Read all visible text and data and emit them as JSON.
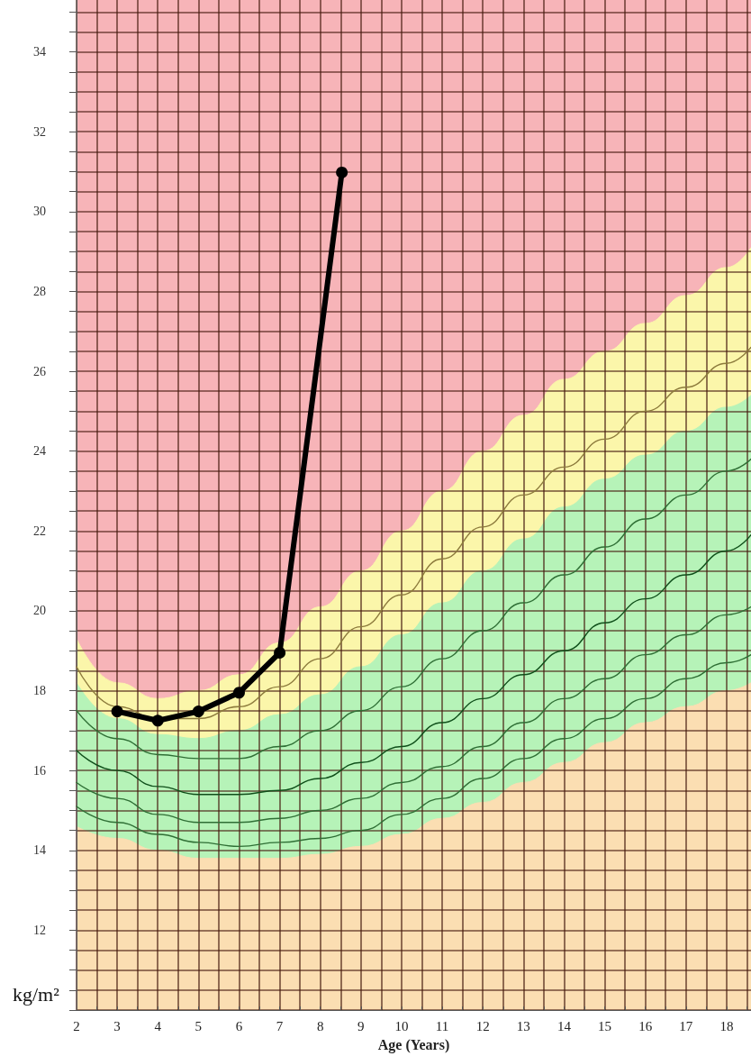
{
  "chart_data": {
    "type": "line",
    "xlabel": "Age (Years)",
    "ylabel": "kg/m²",
    "x": [
      2,
      3,
      4,
      5,
      6,
      7,
      8,
      9,
      10,
      11,
      12,
      13,
      14,
      15,
      16,
      17,
      18,
      18.6
    ],
    "xlim": [
      2,
      18.6
    ],
    "ylim": [
      10,
      35.3
    ],
    "xticks": [
      2,
      {
        "value": 2.5,
        "label": null
      },
      3,
      {
        "value": 3.5,
        "label": null
      },
      4,
      {
        "value": 4.5,
        "label": null
      },
      5,
      {
        "value": 5.5,
        "label": null
      },
      6,
      {
        "value": 6.5,
        "label": null
      },
      7,
      {
        "value": 7.5,
        "label": null
      },
      8,
      {
        "value": 8.5,
        "label": null
      },
      9,
      {
        "value": 9.5,
        "label": null
      },
      10,
      {
        "value": 10.5,
        "label": null
      },
      11,
      {
        "value": 11.5,
        "label": null
      },
      12,
      {
        "value": 12.5,
        "label": null
      },
      13,
      {
        "value": 13.5,
        "label": null
      },
      14,
      {
        "value": 14.5,
        "label": null
      },
      15,
      {
        "value": 15.5,
        "label": null
      },
      16,
      {
        "value": 16.5,
        "label": null
      },
      17,
      {
        "value": 17.5,
        "label": null
      },
      18,
      {
        "value": 18.5,
        "label": null
      }
    ],
    "yticks": [
      {
        "value": 10,
        "label": null
      },
      {
        "value": 10.5,
        "label": null
      },
      {
        "value": 11,
        "label": null
      },
      {
        "value": 11.5,
        "label": null
      },
      12,
      {
        "value": 12.5,
        "label": null
      },
      {
        "value": 13,
        "label": null
      },
      {
        "value": 13.5,
        "label": null
      },
      14,
      {
        "value": 14.5,
        "label": null
      },
      {
        "value": 15,
        "label": null
      },
      {
        "value": 15.5,
        "label": null
      },
      16,
      {
        "value": 16.5,
        "label": null
      },
      {
        "value": 17,
        "label": null
      },
      {
        "value": 17.5,
        "label": null
      },
      18,
      {
        "value": 18.5,
        "label": null
      },
      {
        "value": 19,
        "label": null
      },
      {
        "value": 19.5,
        "label": null
      },
      20,
      {
        "value": 20.5,
        "label": null
      },
      {
        "value": 21,
        "label": null
      },
      {
        "value": 21.5,
        "label": null
      },
      22,
      {
        "value": 22.5,
        "label": null
      },
      {
        "value": 23,
        "label": null
      },
      {
        "value": 23.5,
        "label": null
      },
      24,
      {
        "value": 24.5,
        "label": null
      },
      {
        "value": 25,
        "label": null
      },
      {
        "value": 25.5,
        "label": null
      },
      26,
      {
        "value": 26.5,
        "label": null
      },
      {
        "value": 27,
        "label": null
      },
      {
        "value": 27.5,
        "label": null
      },
      28,
      {
        "value": 28.5,
        "label": null
      },
      {
        "value": 29,
        "label": null
      },
      {
        "value": 29.5,
        "label": null
      },
      30,
      {
        "value": 30.5,
        "label": null
      },
      {
        "value": 31,
        "label": null
      },
      {
        "value": 31.5,
        "label": null
      },
      32,
      {
        "value": 32.5,
        "label": null
      },
      {
        "value": 33,
        "label": null
      },
      {
        "value": 33.5,
        "label": null
      },
      34,
      {
        "value": 34.5,
        "label": null
      },
      {
        "value": 35,
        "label": null
      }
    ],
    "grid": true,
    "bands": [
      {
        "axis": "y",
        "from": 10,
        "to": 35.3,
        "color": "#f7b4b8"
      }
    ],
    "series": [
      {
        "type": "area",
        "color": "#fbf6aa",
        "values": [
          19.3,
          18.2,
          17.8,
          18.0,
          18.4,
          19.2,
          20.1,
          21.0,
          22.0,
          23.0,
          24.0,
          24.9,
          25.8,
          26.5,
          27.2,
          27.9,
          28.6,
          29.1
        ]
      },
      {
        "type": "area",
        "color": "#b6f3b8",
        "values": [
          18.2,
          17.3,
          16.9,
          16.8,
          17.0,
          17.4,
          17.9,
          18.6,
          19.4,
          20.2,
          21.0,
          21.8,
          22.6,
          23.3,
          23.9,
          24.5,
          25.1,
          25.4
        ]
      },
      {
        "type": "area",
        "color": "#fbdeb2",
        "values": [
          14.6,
          14.3,
          14.0,
          13.8,
          13.8,
          13.8,
          13.9,
          14.1,
          14.4,
          14.8,
          15.2,
          15.7,
          16.2,
          16.7,
          17.2,
          17.6,
          18.0,
          18.2
        ]
      },
      {
        "color": "#8c7a3c",
        "values": [
          18.6,
          17.6,
          17.3,
          17.3,
          17.6,
          18.1,
          18.8,
          19.6,
          20.4,
          21.3,
          22.1,
          22.9,
          23.6,
          24.3,
          25.0,
          25.6,
          26.2,
          26.6
        ]
      },
      {
        "color": "#2f6f35",
        "values": [
          17.5,
          16.8,
          16.4,
          16.3,
          16.3,
          16.6,
          17.0,
          17.5,
          18.1,
          18.8,
          19.5,
          20.2,
          20.9,
          21.6,
          22.3,
          22.9,
          23.5,
          23.8
        ]
      },
      {
        "color": "#0f4f1a",
        "values": [
          16.5,
          16.0,
          15.6,
          15.4,
          15.4,
          15.5,
          15.8,
          16.2,
          16.6,
          17.2,
          17.8,
          18.4,
          19.0,
          19.7,
          20.3,
          20.9,
          21.5,
          21.9
        ]
      },
      {
        "color": "#2f6f35",
        "values": [
          15.7,
          15.3,
          14.9,
          14.7,
          14.7,
          14.8,
          15.0,
          15.3,
          15.7,
          16.1,
          16.6,
          17.2,
          17.8,
          18.3,
          18.9,
          19.4,
          19.9,
          20.1
        ]
      },
      {
        "color": "#2f6f35",
        "values": [
          15.1,
          14.7,
          14.4,
          14.2,
          14.1,
          14.2,
          14.3,
          14.5,
          14.9,
          15.3,
          15.8,
          16.3,
          16.8,
          17.3,
          17.8,
          18.3,
          18.7,
          18.9
        ]
      },
      {
        "color": "#000000",
        "marker": "circle",
        "x": [
          3,
          4,
          5,
          6,
          7,
          8.53
        ],
        "values": [
          17.48,
          17.25,
          17.48,
          17.95,
          18.95,
          30.98
        ]
      }
    ]
  }
}
